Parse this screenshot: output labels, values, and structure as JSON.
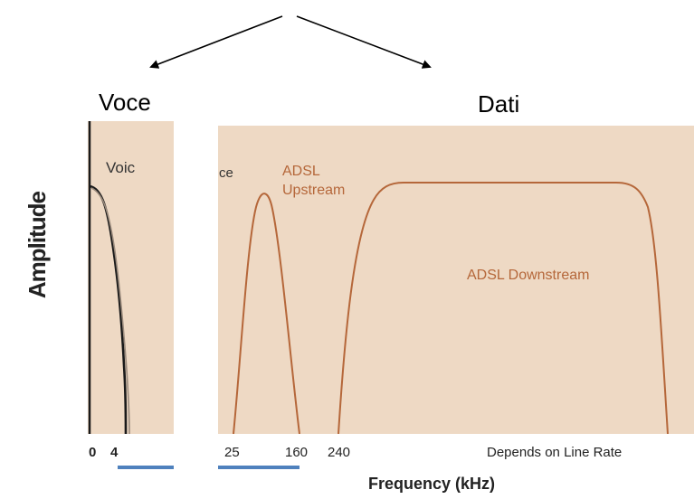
{
  "top": {
    "partial_label": ""
  },
  "voce_label": "Voce",
  "dati_label": "Dati",
  "left_panel": {
    "voice_text": "Voic"
  },
  "right_panel": {
    "voice_fragment": "ce",
    "upstream_line1": "ADSL",
    "upstream_line2": "Upstream",
    "downstream": "ADSL Downstream"
  },
  "axis": {
    "y_title": "Amplitude",
    "x_title": "Frequency (kHz)",
    "left_ticks": [
      "0",
      "4"
    ],
    "right_ticks": [
      "25",
      "160",
      "240",
      "Depends on Line Rate"
    ]
  },
  "colors": {
    "panel_bg": "#eed9c4",
    "curve": "#b5673a",
    "voice_curve": "#1a1a1a",
    "accent_line": "#4f81bd"
  }
}
